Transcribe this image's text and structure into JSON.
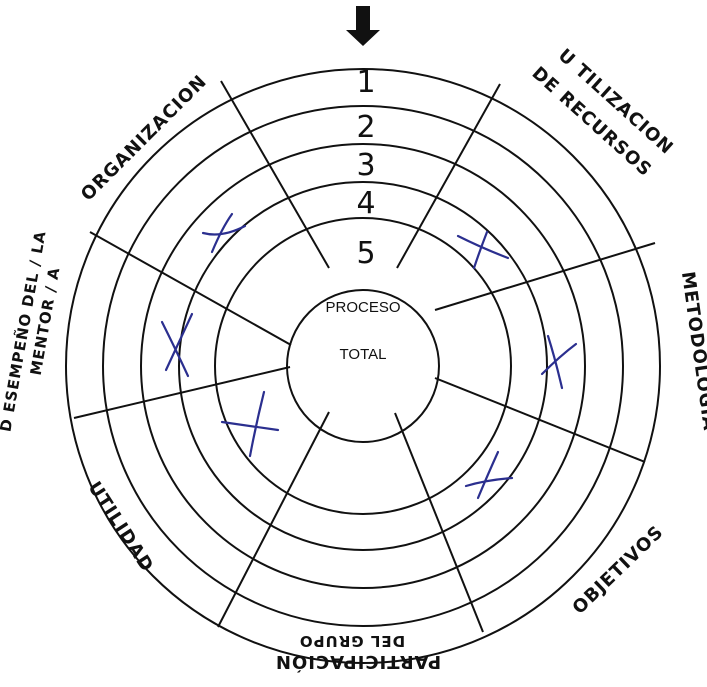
{
  "center": {
    "line1": "PROCESO",
    "line2": "TOTAL"
  },
  "rings": [
    "1",
    "2",
    "3",
    "4",
    "5"
  ],
  "categories": {
    "organizacion": "ORGANIZACION",
    "utilizacion_1": "U TILIZACION",
    "utilizacion_2": "DE RECURSOS",
    "metodologia": "METODOLOGÍA",
    "objetivos": "OBJETIVOS",
    "participacion_1": "PARTICIPACIÓN",
    "participacion_2": "DEL GRUPO",
    "utilidad": "UTILIDAD",
    "desempeno_1": "D ESEMPEÑO DEL / LA",
    "desempeno_2": "MENTOR / A"
  },
  "colors": {
    "ink": "#111111",
    "pen": "#2b2f8f"
  },
  "marks": [
    {
      "category": "ORGANIZACION",
      "ring": "3"
    },
    {
      "category": "U TILIZACION DE RECURSOS",
      "ring": "4"
    },
    {
      "category": "METODOLOGÍA",
      "ring": "3"
    },
    {
      "category": "OBJETIVOS",
      "ring": "3"
    },
    {
      "category": "UTILIDAD",
      "ring": "3"
    },
    {
      "category": "D ESEMPEÑO DEL / LA MENTOR / A",
      "ring": "3"
    }
  ]
}
